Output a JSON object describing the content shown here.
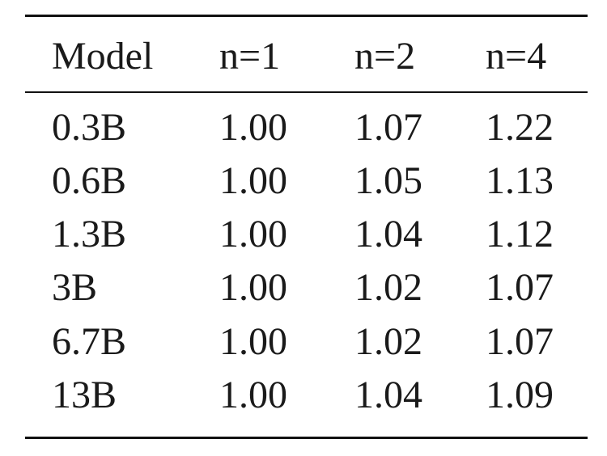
{
  "table": {
    "headers": [
      "Model",
      "n=1",
      "n=2",
      "n=4"
    ],
    "rows": [
      [
        "0.3B",
        "1.00",
        "1.07",
        "1.22"
      ],
      [
        "0.6B",
        "1.00",
        "1.05",
        "1.13"
      ],
      [
        "1.3B",
        "1.00",
        "1.04",
        "1.12"
      ],
      [
        "3B",
        "1.00",
        "1.02",
        "1.07"
      ],
      [
        "6.7B",
        "1.00",
        "1.02",
        "1.07"
      ],
      [
        "13B",
        "1.00",
        "1.04",
        "1.09"
      ]
    ]
  }
}
